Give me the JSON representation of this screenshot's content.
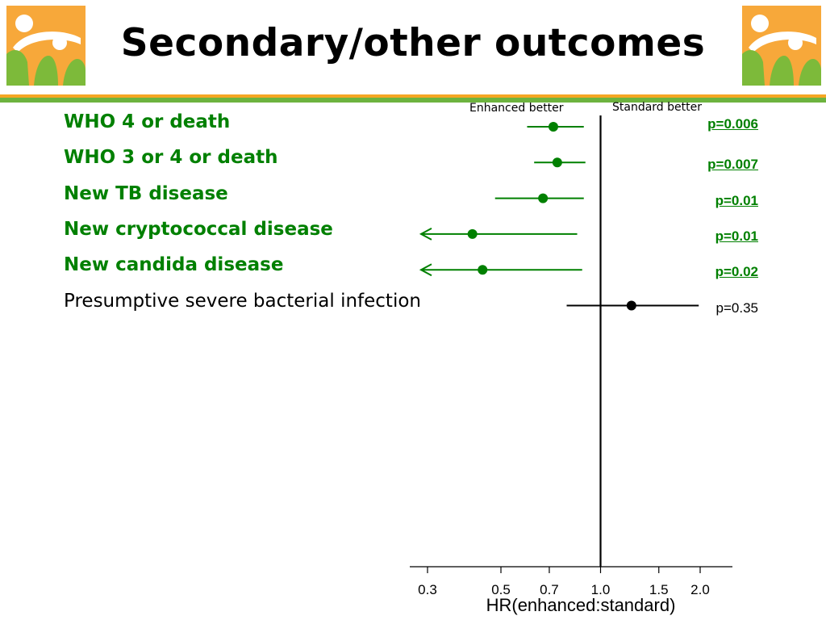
{
  "title": "Secondary/other outcomes",
  "colors": {
    "orange_bar": "#F5A623",
    "green_bar": "#6DB33F",
    "significant": "#008000",
    "nonsignificant": "#000000",
    "logo_orange": "#F7A83A",
    "logo_green": "#7DBA3A"
  },
  "side_labels": {
    "left": "Enhanced better",
    "right": "Standard better"
  },
  "chart_data": {
    "type": "forest",
    "xlabel": "HR(enhanced:standard)",
    "x_scale": "log",
    "xlim": [
      0.28,
      2.5
    ],
    "x_ticks": [
      0.3,
      0.5,
      0.7,
      1.0,
      1.5,
      2.0
    ],
    "x_tick_labels": [
      "0.3",
      "0.5",
      "0.7",
      "1.0",
      "1.5",
      "2.0"
    ],
    "reference_line": 1.0,
    "rows": [
      {
        "label": "WHO 4 or death",
        "hr": 0.72,
        "lower": 0.6,
        "upper": 0.89,
        "lower_truncated": false,
        "p": "p=0.006",
        "significant": true
      },
      {
        "label": "WHO 3 or 4 or death",
        "hr": 0.74,
        "lower": 0.63,
        "upper": 0.9,
        "lower_truncated": false,
        "p": "p=0.007",
        "significant": true
      },
      {
        "label": "New TB disease",
        "hr": 0.67,
        "lower": 0.48,
        "upper": 0.89,
        "lower_truncated": false,
        "p": "p=0.01",
        "significant": true
      },
      {
        "label": "New cryptococcal disease",
        "hr": 0.41,
        "lower": 0.3,
        "upper": 0.85,
        "lower_truncated": true,
        "p": "p=0.01",
        "significant": true
      },
      {
        "label": "New candida disease",
        "hr": 0.44,
        "lower": 0.3,
        "upper": 0.88,
        "lower_truncated": true,
        "p": "p=0.02",
        "significant": true
      },
      {
        "label": "Presumptive severe bacterial infection",
        "hr": 1.24,
        "lower": 0.79,
        "upper": 1.98,
        "lower_truncated": false,
        "p": "p=0.35",
        "significant": false
      }
    ]
  }
}
